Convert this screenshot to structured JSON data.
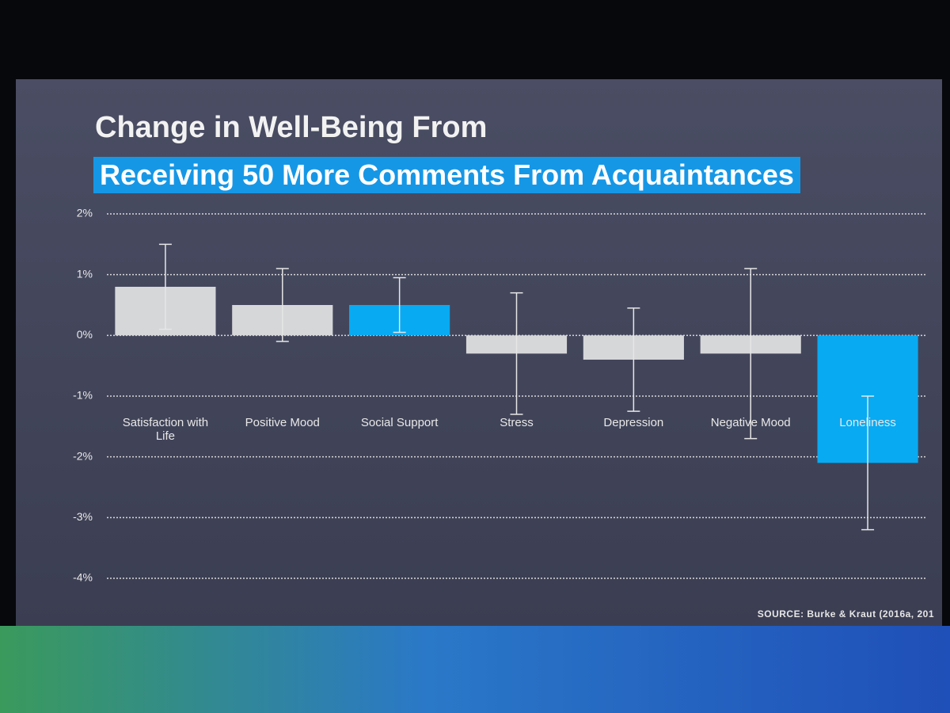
{
  "chart_data": {
    "type": "bar",
    "title": "Change in Well-Being From",
    "subtitle": "Receiving 50 More Comments From Acquaintances",
    "source": "SOURCE: Burke & Kraut (2016a, 201",
    "categories": [
      "Satisfaction with Life",
      "Positive Mood",
      "Social Support",
      "Stress",
      "Depression",
      "Negative Mood",
      "Loneliness"
    ],
    "values": [
      0.8,
      0.5,
      0.5,
      -0.3,
      -0.4,
      -0.3,
      -2.1
    ],
    "errors": [
      0.7,
      0.6,
      0.45,
      1.0,
      0.85,
      1.4,
      1.1
    ],
    "colors": [
      "#d6d7d9",
      "#d6d7d9",
      "#08aaf2",
      "#d6d7d9",
      "#d6d7d9",
      "#d6d7d9",
      "#08aaf2"
    ],
    "ylim": [
      -4,
      2
    ],
    "yticks": [
      {
        "value": 2,
        "label": "2%"
      },
      {
        "value": 1,
        "label": "1%"
      },
      {
        "value": 0,
        "label": "0%"
      },
      {
        "value": -1,
        "label": "-1%"
      },
      {
        "value": -2,
        "label": "-2%"
      },
      {
        "value": -3,
        "label": "-3%"
      },
      {
        "value": -4,
        "label": "-4%"
      }
    ],
    "grid": true
  }
}
